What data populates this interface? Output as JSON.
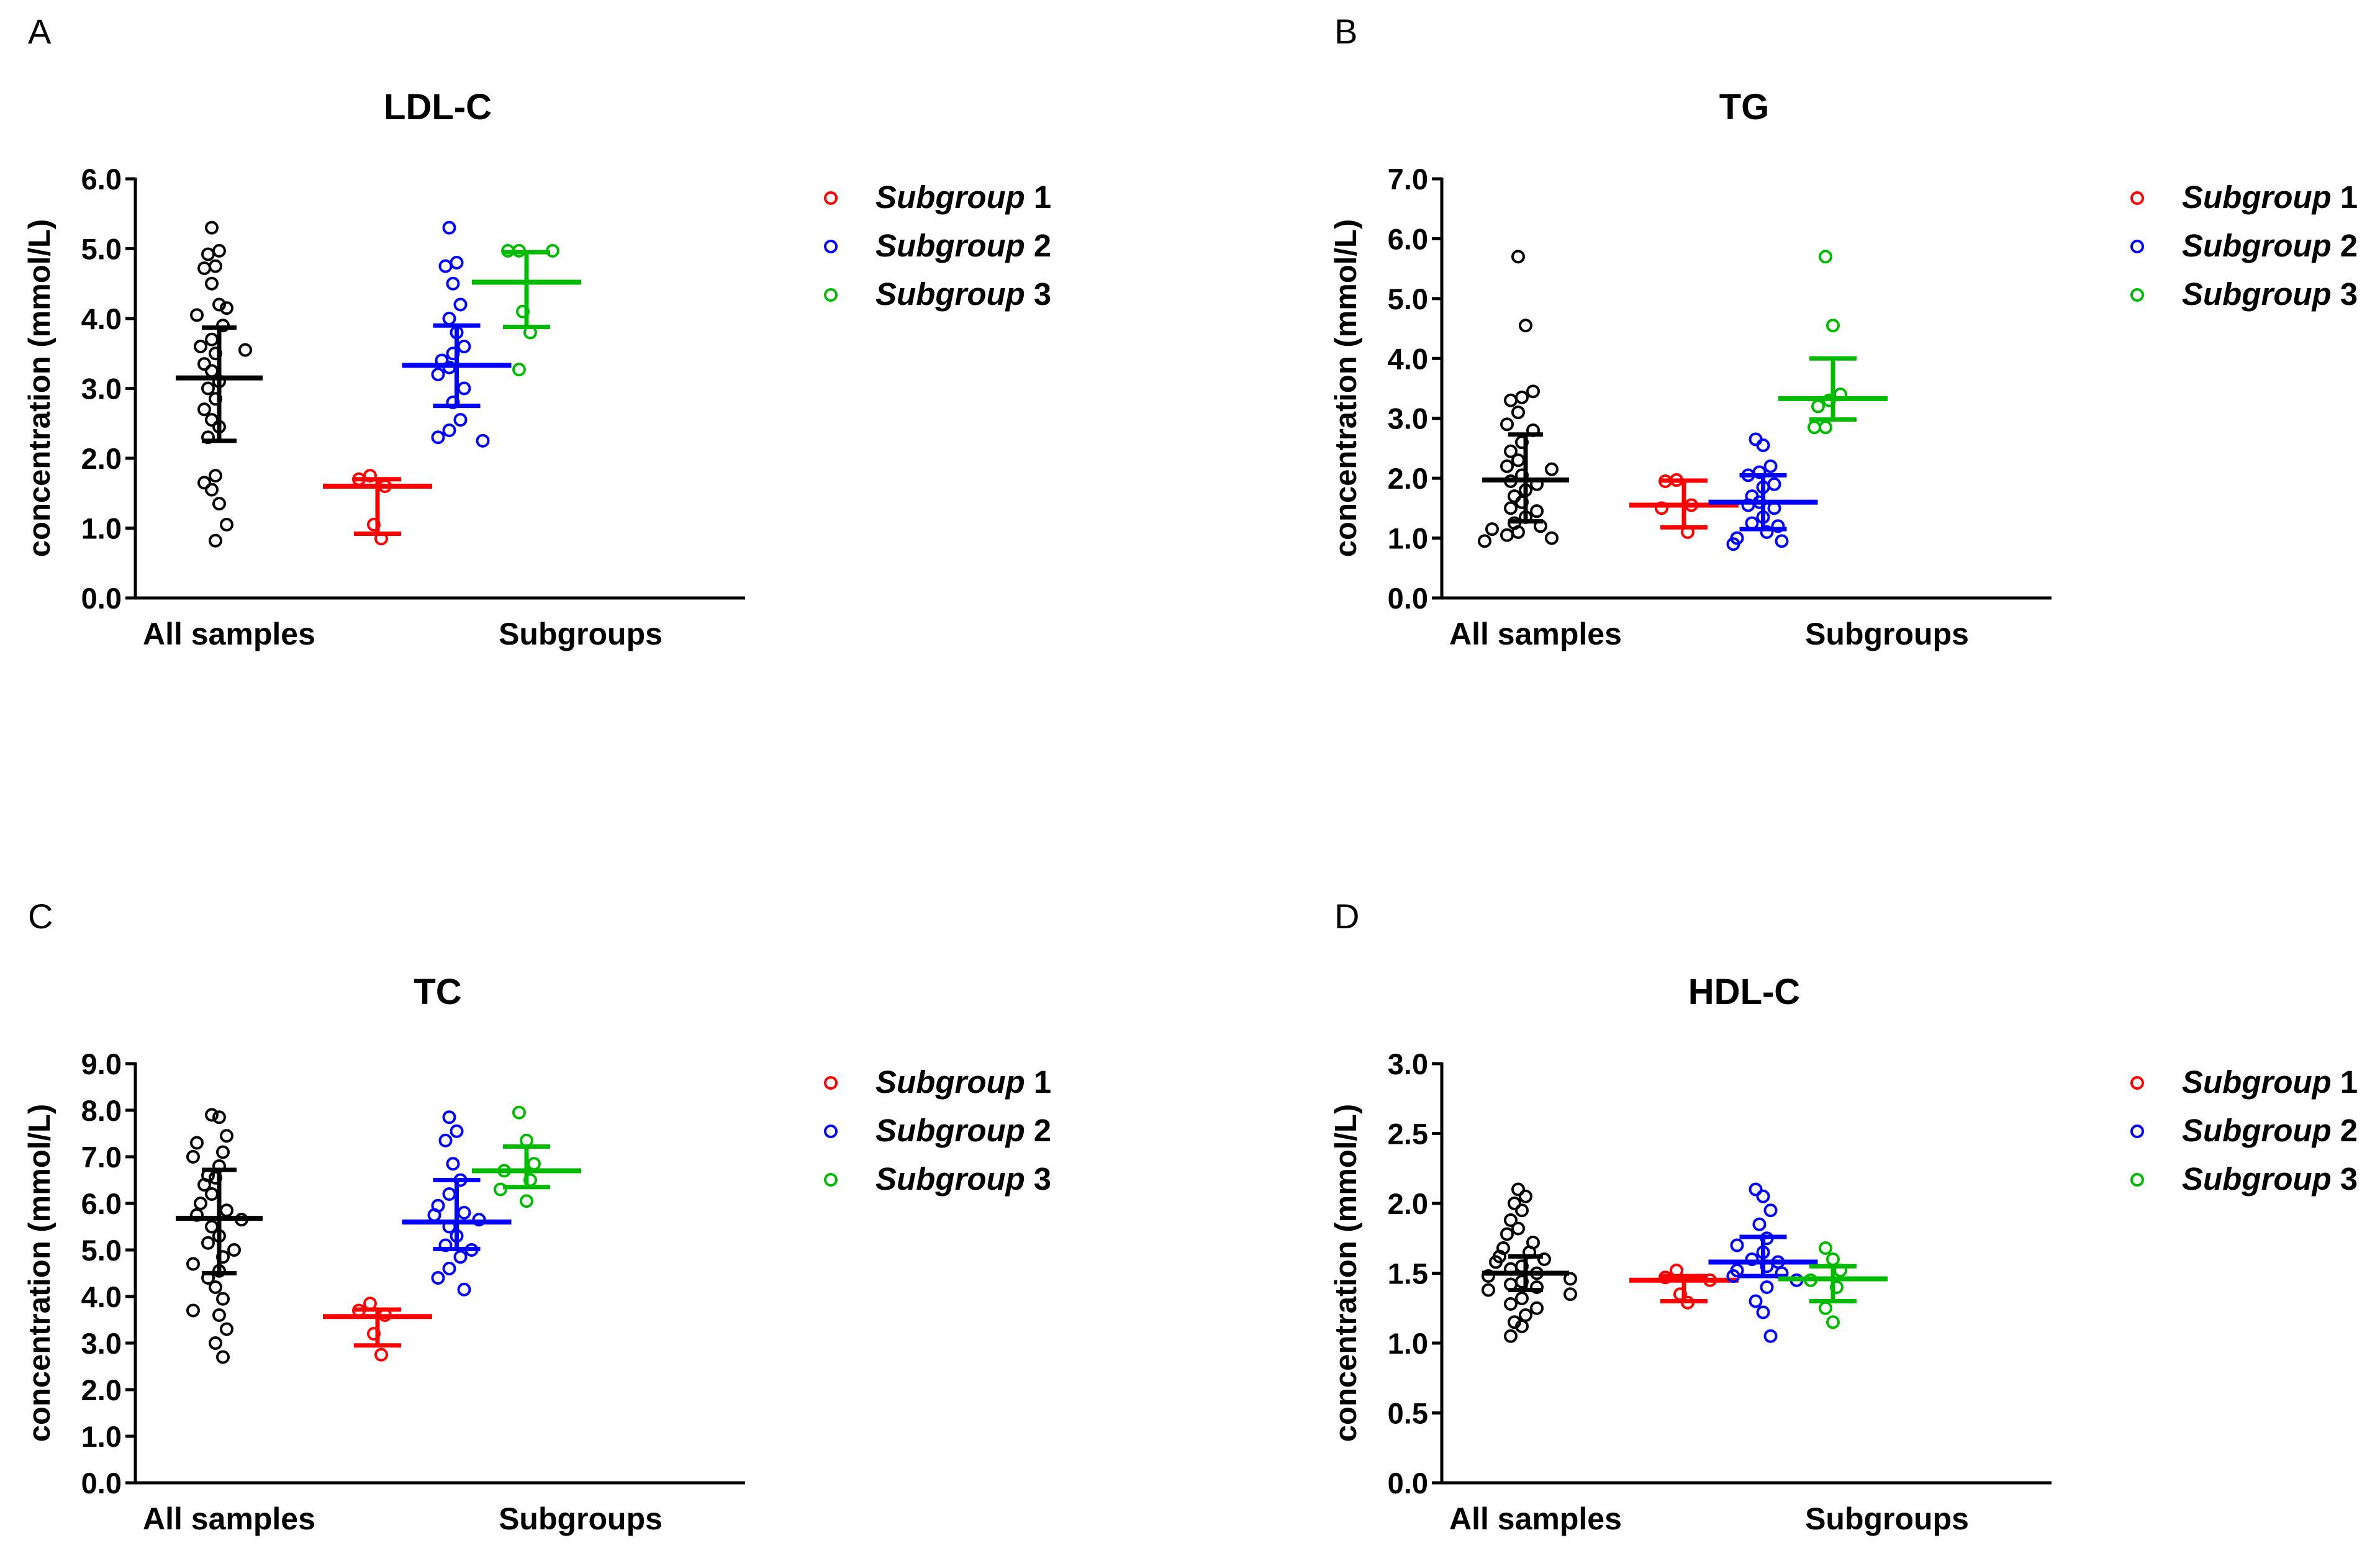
{
  "chart_data": [
    {
      "panel_label": "A",
      "type": "scatter",
      "title": "LDL-C",
      "ylabel": "concentration (mmol/L)",
      "ylim": [
        0,
        6
      ],
      "yticks": [
        "0.0",
        "1.0",
        "2.0",
        "3.0",
        "4.0",
        "5.0",
        "6.0"
      ],
      "categories": [
        "All samples",
        "Subgroups"
      ],
      "legend": {
        "position": "right",
        "entries": [
          {
            "name": "Subgroup",
            "number": "1",
            "color": "#ff0000"
          },
          {
            "name": "Subgroup",
            "number": "2",
            "color": "#0000ff"
          },
          {
            "name": "Subgroup",
            "number": "3",
            "color": "#00bb00"
          }
        ]
      },
      "groups": [
        {
          "name": "All samples",
          "color": "#000000",
          "x": 0.9,
          "median": 3.15,
          "q1": 2.25,
          "q3": 3.87,
          "values": [
            5.3,
            4.97,
            4.92,
            4.75,
            4.72,
            4.5,
            4.2,
            4.15,
            4.05,
            3.9,
            3.7,
            3.6,
            3.55,
            3.5,
            3.35,
            3.25,
            3.1,
            3.0,
            2.85,
            2.7,
            2.55,
            2.45,
            2.3,
            1.75,
            1.65,
            1.55,
            1.35,
            1.05,
            0.82
          ]
        },
        {
          "name": "Subgroup 1",
          "color": "#ff0000",
          "x": 2.6,
          "median": 1.6,
          "q1": 0.92,
          "q3": 1.7,
          "values": [
            1.75,
            1.7,
            1.6,
            1.05,
            0.85
          ]
        },
        {
          "name": "Subgroup 2",
          "color": "#0000ff",
          "x": 3.45,
          "median": 3.33,
          "q1": 2.75,
          "q3": 3.9,
          "values": [
            5.3,
            4.8,
            4.75,
            4.5,
            4.2,
            4.0,
            3.8,
            3.6,
            3.5,
            3.4,
            3.3,
            3.2,
            3.0,
            2.8,
            2.55,
            2.4,
            2.3,
            2.25
          ]
        },
        {
          "name": "Subgroup 3",
          "color": "#00bb00",
          "x": 4.2,
          "median": 4.52,
          "q1": 3.88,
          "q3": 4.95,
          "values": [
            4.97,
            4.97,
            4.97,
            4.1,
            3.8,
            3.27
          ]
        }
      ]
    },
    {
      "panel_label": "B",
      "type": "scatter",
      "title": "TG",
      "ylabel": "concentration (mmol/L)",
      "ylim": [
        0,
        7
      ],
      "yticks": [
        "0.0",
        "1.0",
        "2.0",
        "3.0",
        "4.0",
        "5.0",
        "6.0",
        "7.0"
      ],
      "categories": [
        "All samples",
        "Subgroups"
      ],
      "legend": {
        "position": "right",
        "entries": [
          {
            "name": "Subgroup",
            "number": "1",
            "color": "#ff0000"
          },
          {
            "name": "Subgroup",
            "number": "2",
            "color": "#0000ff"
          },
          {
            "name": "Subgroup",
            "number": "3",
            "color": "#00bb00"
          }
        ]
      },
      "groups": [
        {
          "name": "All samples",
          "color": "#000000",
          "x": 0.9,
          "median": 1.97,
          "q1": 1.28,
          "q3": 2.73,
          "values": [
            5.7,
            4.55,
            3.45,
            3.35,
            3.3,
            3.1,
            2.9,
            2.8,
            2.6,
            2.45,
            2.3,
            2.2,
            2.15,
            2.05,
            1.95,
            1.9,
            1.8,
            1.7,
            1.6,
            1.5,
            1.45,
            1.35,
            1.25,
            1.2,
            1.15,
            1.1,
            1.05,
            1.0,
            0.95
          ]
        },
        {
          "name": "Subgroup 1",
          "color": "#ff0000",
          "x": 2.6,
          "median": 1.55,
          "q1": 1.18,
          "q3": 1.96,
          "values": [
            1.97,
            1.95,
            1.55,
            1.5,
            1.1
          ]
        },
        {
          "name": "Subgroup 2",
          "color": "#0000ff",
          "x": 3.45,
          "median": 1.6,
          "q1": 1.15,
          "q3": 2.05,
          "values": [
            2.65,
            2.55,
            2.2,
            2.1,
            2.05,
            1.9,
            1.85,
            1.7,
            1.6,
            1.55,
            1.5,
            1.35,
            1.25,
            1.2,
            1.1,
            1.0,
            0.95,
            0.9
          ]
        },
        {
          "name": "Subgroup 3",
          "color": "#00bb00",
          "x": 4.2,
          "median": 3.33,
          "q1": 2.98,
          "q3": 4.0,
          "values": [
            5.7,
            4.55,
            3.4,
            3.3,
            3.2,
            2.85,
            2.85
          ]
        }
      ]
    },
    {
      "panel_label": "C",
      "type": "scatter",
      "title": "TC",
      "ylabel": "concentration (mmol/L)",
      "ylim": [
        0,
        9
      ],
      "yticks": [
        "0.0",
        "1.0",
        "2.0",
        "3.0",
        "4.0",
        "5.0",
        "6.0",
        "7.0",
        "8.0",
        "9.0"
      ],
      "categories": [
        "All samples",
        "Subgroups"
      ],
      "legend": {
        "position": "right",
        "entries": [
          {
            "name": "Subgroup",
            "number": "1",
            "color": "#ff0000"
          },
          {
            "name": "Subgroup",
            "number": "2",
            "color": "#0000ff"
          },
          {
            "name": "Subgroup",
            "number": "3",
            "color": "#00bb00"
          }
        ]
      },
      "groups": [
        {
          "name": "All samples",
          "color": "#000000",
          "x": 0.9,
          "median": 5.68,
          "q1": 4.5,
          "q3": 6.72,
          "values": [
            7.9,
            7.85,
            7.45,
            7.3,
            7.1,
            7.0,
            6.8,
            6.6,
            6.55,
            6.4,
            6.2,
            6.0,
            5.85,
            5.75,
            5.65,
            5.5,
            5.3,
            5.15,
            5.0,
            4.85,
            4.7,
            4.55,
            4.4,
            4.2,
            3.95,
            3.7,
            3.6,
            3.3,
            3.0,
            2.7
          ]
        },
        {
          "name": "Subgroup 1",
          "color": "#ff0000",
          "x": 2.6,
          "median": 3.57,
          "q1": 2.95,
          "q3": 3.72,
          "values": [
            3.85,
            3.7,
            3.6,
            3.2,
            2.75
          ]
        },
        {
          "name": "Subgroup 2",
          "color": "#0000ff",
          "x": 3.45,
          "median": 5.6,
          "q1": 5.02,
          "q3": 6.5,
          "values": [
            7.85,
            7.55,
            7.35,
            6.85,
            6.5,
            6.2,
            5.95,
            5.8,
            5.75,
            5.65,
            5.5,
            5.3,
            5.1,
            5.0,
            4.85,
            4.6,
            4.4,
            4.15
          ]
        },
        {
          "name": "Subgroup 3",
          "color": "#00bb00",
          "x": 4.2,
          "median": 6.7,
          "q1": 6.35,
          "q3": 7.22,
          "values": [
            7.95,
            7.35,
            6.85,
            6.7,
            6.5,
            6.3,
            6.05
          ]
        }
      ]
    },
    {
      "panel_label": "D",
      "type": "scatter",
      "title": "HDL-C",
      "ylabel": "concentration (mmol/L)",
      "ylim": [
        0,
        3
      ],
      "yticks": [
        "0.0",
        "0.5",
        "1.0",
        "1.5",
        "2.0",
        "2.5",
        "3.0"
      ],
      "categories": [
        "All samples",
        "Subgroups"
      ],
      "legend": {
        "position": "right",
        "entries": [
          {
            "name": "Subgroup",
            "number": "1",
            "color": "#ff0000"
          },
          {
            "name": "Subgroup",
            "number": "2",
            "color": "#0000ff"
          },
          {
            "name": "Subgroup",
            "number": "3",
            "color": "#00bb00"
          }
        ]
      },
      "groups": [
        {
          "name": "All samples",
          "color": "#000000",
          "x": 0.9,
          "median": 1.5,
          "q1": 1.38,
          "q3": 1.62,
          "values": [
            2.1,
            2.05,
            2.0,
            1.95,
            1.88,
            1.82,
            1.78,
            1.72,
            1.68,
            1.65,
            1.62,
            1.6,
            1.58,
            1.55,
            1.53,
            1.5,
            1.48,
            1.46,
            1.44,
            1.42,
            1.4,
            1.38,
            1.35,
            1.32,
            1.28,
            1.25,
            1.2,
            1.15,
            1.12,
            1.05
          ]
        },
        {
          "name": "Subgroup 1",
          "color": "#ff0000",
          "x": 2.6,
          "median": 1.45,
          "q1": 1.3,
          "q3": 1.48,
          "values": [
            1.52,
            1.47,
            1.45,
            1.35,
            1.29
          ]
        },
        {
          "name": "Subgroup 2",
          "color": "#0000ff",
          "x": 3.45,
          "median": 1.58,
          "q1": 1.48,
          "q3": 1.76,
          "values": [
            2.1,
            2.05,
            1.95,
            1.85,
            1.75,
            1.7,
            1.65,
            1.6,
            1.58,
            1.55,
            1.52,
            1.5,
            1.48,
            1.45,
            1.4,
            1.3,
            1.22,
            1.05
          ]
        },
        {
          "name": "Subgroup 3",
          "color": "#00bb00",
          "x": 4.2,
          "median": 1.46,
          "q1": 1.3,
          "q3": 1.55,
          "values": [
            1.68,
            1.6,
            1.52,
            1.45,
            1.4,
            1.25,
            1.15
          ]
        }
      ]
    }
  ]
}
